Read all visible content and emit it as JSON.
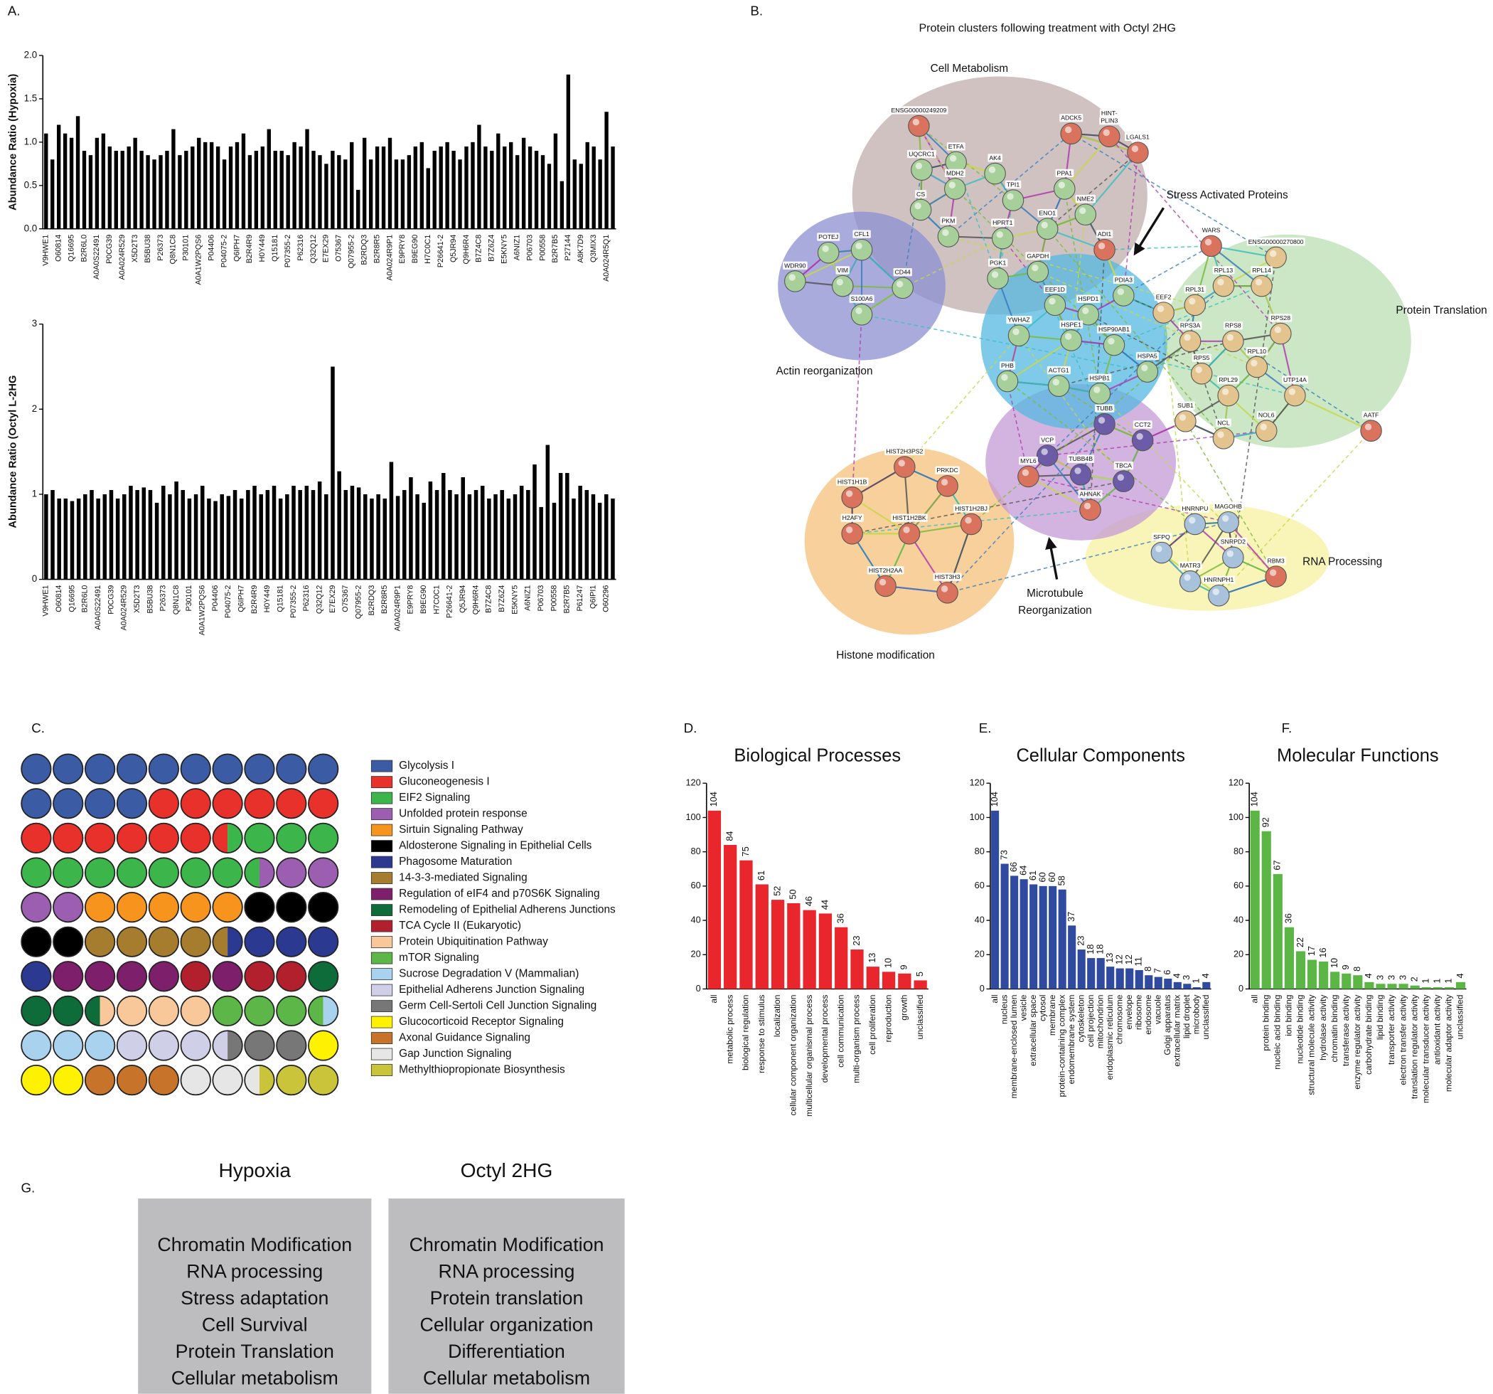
{
  "panel_labels": [
    "A.",
    "B.",
    "C.",
    "D.",
    "E.",
    "F.",
    "G."
  ],
  "chart_data": [
    {
      "type": "bar",
      "y_label": "Abundance Ratio (Hypoxia)",
      "color": "#000000",
      "categories": [
        "V9HWE1",
        null,
        "O60814",
        null,
        "Q16695",
        null,
        "B2R6L0",
        null,
        "A0A0S22491",
        null,
        "P0CG39",
        null,
        "A0A024R529",
        null,
        "X5D2T3",
        null,
        "B5BU38",
        null,
        "P26373",
        null,
        "Q8N1C8",
        null,
        "P30101",
        null,
        "A0A1W2PQS6",
        null,
        "P04406",
        null,
        "P04075-2",
        null,
        "Q6IPH7",
        null,
        "B2R4R9",
        null,
        "H0Y449",
        null,
        "Q15181",
        null,
        "P07355-2",
        null,
        "P62316",
        null,
        "Q32Q12",
        null,
        "E7EX29",
        null,
        "O75367",
        null,
        "Q07955-2",
        null,
        "B2RDQ3",
        null,
        "B2R8R5",
        null,
        "A0A024R9P1",
        null,
        "E9PRY8",
        null,
        "B9EG90",
        null,
        "H7C0C1",
        null,
        "P26641-2",
        null,
        "Q5JR94",
        null,
        "Q9H6R4",
        null,
        "B7Z4C8",
        null,
        "B7Z6Z4",
        null,
        "E5KNY5",
        null,
        "A6NIZ1",
        null,
        "P06703",
        null,
        "P00558",
        null,
        "B2R7B5",
        null,
        "P27144",
        null,
        "A8K7D9",
        null,
        "Q3MIX3",
        null,
        "A0A024R5Q1",
        null
      ],
      "values": [
        1.1,
        0.8,
        1.2,
        1.1,
        1.05,
        1.3,
        0.9,
        0.85,
        1.05,
        1.1,
        0.95,
        0.9,
        0.9,
        0.95,
        1.05,
        0.9,
        0.85,
        0.8,
        0.85,
        0.9,
        1.15,
        0.85,
        0.9,
        0.95,
        1.05,
        1.0,
        1.0,
        0.95,
        0.8,
        0.95,
        1.0,
        1.1,
        0.85,
        0.9,
        0.95,
        1.15,
        0.9,
        0.9,
        0.85,
        1.0,
        0.95,
        1.15,
        0.9,
        0.85,
        0.75,
        0.9,
        0.85,
        0.8,
        1.0,
        0.45,
        1.05,
        0.8,
        0.95,
        0.95,
        1.05,
        0.8,
        0.8,
        0.85,
        0.95,
        1.0,
        0.7,
        0.9,
        0.95,
        1.0,
        0.9,
        0.8,
        0.95,
        1.0,
        1.2,
        0.95,
        0.9,
        1.1,
        0.95,
        1.0,
        0.85,
        1.05,
        0.95,
        0.9,
        0.85,
        0.75,
        1.1,
        0.55,
        1.78,
        0.8,
        0.75,
        1.0,
        0.95,
        0.8,
        1.35,
        0.95
      ],
      "ylim": [
        0,
        2
      ],
      "yticks": [
        {
          "value": 0,
          "label": "0.0"
        },
        {
          "value": 0.5,
          "label": "0.5"
        },
        {
          "value": 1,
          "label": "1.0"
        },
        {
          "value": 1.5,
          "label": "1.5"
        },
        {
          "value": 2,
          "label": "2.0"
        }
      ]
    },
    {
      "type": "bar",
      "y_label": "Abundance Ratio (Octyl L-2HG",
      "color": "#000000",
      "categories": [
        "V9HWE1",
        null,
        "O60814",
        null,
        "Q16695",
        null,
        "B2R6L0",
        null,
        "A0A0S22491",
        null,
        "P0CG39",
        null,
        "A0A024R529",
        null,
        "X5D2T3",
        null,
        "B5BU38",
        null,
        "P26373",
        null,
        "Q8N1C8",
        null,
        "P30101",
        null,
        "A0A1W2PQS6",
        null,
        "P04406",
        null,
        "P04075-2",
        null,
        "Q6IPH7",
        null,
        "B2R4R9",
        null,
        "H0Y449",
        null,
        "Q15181",
        null,
        "P07355-2",
        null,
        "P62316",
        null,
        "Q32Q12",
        null,
        "E7EX29",
        null,
        "O75367",
        null,
        "Q07955-2",
        null,
        "B2RDQ3",
        null,
        "B2R8R5",
        null,
        "A0A024R9P1",
        null,
        "E9PRY8",
        null,
        "B9EG90",
        null,
        "H7C0C1",
        null,
        "P26641-2",
        null,
        "Q5JR94",
        null,
        "Q9H6R4",
        null,
        "B7Z4C8",
        null,
        "B7Z6Z4",
        null,
        "E5KNY5",
        null,
        "A6NIZ1",
        null,
        "P06703",
        null,
        "P00558",
        null,
        "B2R7B5",
        null,
        "P61247",
        null,
        "Q6IPI1",
        null,
        "O60296",
        null
      ],
      "values": [
        1.0,
        1.05,
        0.95,
        0.95,
        0.92,
        0.95,
        1.0,
        1.05,
        0.95,
        1.0,
        1.05,
        0.95,
        1.0,
        1.1,
        1.05,
        1.08,
        1.05,
        0.9,
        1.1,
        1.0,
        1.15,
        1.05,
        0.95,
        1.0,
        1.1,
        0.95,
        0.92,
        1.0,
        0.98,
        1.05,
        0.95,
        1.05,
        1.1,
        1.0,
        1.05,
        1.1,
        0.95,
        1.0,
        1.1,
        1.05,
        1.1,
        1.05,
        1.15,
        1.0,
        2.5,
        1.27,
        1.05,
        1.1,
        1.08,
        1.0,
        0.95,
        1.0,
        0.95,
        1.38,
        0.98,
        1.05,
        1.2,
        1.0,
        0.9,
        1.15,
        1.05,
        1.25,
        1.05,
        1.0,
        1.2,
        1.0,
        1.05,
        1.1,
        0.95,
        1.0,
        1.05,
        0.95,
        1.0,
        1.1,
        1.05,
        1.35,
        0.85,
        1.58,
        0.9,
        1.25,
        1.25,
        0.95,
        1.1,
        1.05,
        1.0,
        0.9,
        1.0,
        0.95
      ],
      "ylim": [
        0,
        3
      ],
      "yticks": [
        0,
        1,
        2,
        3
      ]
    },
    {
      "type": "bar",
      "title": "Biological Processes",
      "color": "#e8262b",
      "data_labels": true,
      "categories": [
        "all",
        "metabolic process",
        "biological regulation",
        "response to stimulus",
        "localization",
        "cellular component organization",
        "multicellular organismal process",
        "developmental process",
        "cell communication",
        "multi-organism process",
        "cell proliferation",
        "reproduction",
        "growth",
        "unclassified"
      ],
      "values": [
        104,
        84,
        75,
        61,
        52,
        50,
        46,
        44,
        36,
        23,
        13,
        10,
        9,
        5
      ],
      "ylim": [
        0,
        120
      ],
      "yticks": [
        0,
        20,
        40,
        60,
        80,
        100,
        120
      ]
    },
    {
      "type": "bar",
      "title": "Cellular Components",
      "color": "#2f4a9e",
      "data_labels": true,
      "categories": [
        "all",
        "nucleus",
        "membrane-enclosed lumen",
        "vesicle",
        "extracellular space",
        "cytosol",
        "membrane",
        "protein-containing complex",
        "endomembrane system",
        "cytoskeleton",
        "cell projection",
        "mitochondrion",
        "endoplasmic reticulum",
        "chromosome",
        "envelope",
        "ribosome",
        "endosome",
        "vacuole",
        "Golgi apparatus",
        "extracellular matrix",
        "lipid droplet",
        "microbody",
        "unclassified"
      ],
      "values": [
        104,
        73,
        66,
        64,
        61,
        60,
        60,
        58,
        37,
        23,
        18,
        18,
        13,
        12,
        12,
        11,
        8,
        7,
        6,
        4,
        3,
        1,
        4
      ],
      "ylim": [
        0,
        120
      ],
      "yticks": [
        0,
        20,
        40,
        60,
        80,
        100,
        120
      ]
    },
    {
      "type": "bar",
      "title": "Molecular Functions",
      "color": "#5bb646",
      "data_labels": true,
      "categories": [
        "all",
        "protein binding",
        "nucleic acid binding",
        "ion binding",
        "nucleotide binding",
        "structural molecule activity",
        "hydrolase activity",
        "chromatin binding",
        "transferase activity",
        "enzyme regulator activity",
        "carbohydrate binding",
        "lipid binding",
        "transporter activity",
        "electron transfer activity",
        "translation regulator activity",
        "molecular transducer activity",
        "antioxidant activity",
        "molecular adaptor activity",
        "unclassified"
      ],
      "values": [
        104,
        92,
        67,
        36,
        22,
        17,
        16,
        10,
        9,
        8,
        4,
        3,
        3,
        3,
        2,
        1,
        1,
        1,
        4
      ],
      "ylim": [
        0,
        120
      ],
      "yticks": [
        0,
        20,
        40,
        60,
        80,
        100,
        120
      ]
    }
  ],
  "network": {
    "title": "Protein clusters following treatment with Octyl 2HG",
    "clusters": [
      "Cell Metabolism",
      "Actin reorganization",
      "Protein Translation",
      "RNA Processing",
      "Histone modification"
    ],
    "stress_label": "Stress Activated Proteins",
    "microtubule_label": [
      "Microtubule",
      "Reorganization"
    ],
    "nodes": [
      "ENSG00000249209",
      "UQCRC1",
      "ETFA",
      "AK4",
      "MDH2",
      "TPI1",
      "PPA1",
      "ADCK5",
      [
        "HINT-",
        "PLIN3"
      ],
      "LGALS1",
      "NME2",
      "CS",
      "ENO1",
      "PKM",
      "HPRT1",
      "ADI1",
      "GAPDH",
      "PGK1",
      "POTEJ",
      "CFL1",
      "WDR90",
      "VIM",
      "CD44",
      "S100A6",
      "EEF1D",
      "HSPD1",
      "PDIA3",
      "EEF2",
      "YWHAZ",
      "HSPE1",
      "HSP90AB1",
      "HSPA5",
      "PHB",
      "ACTG1",
      "HSPB1",
      "TUBB",
      "CCT2",
      "VCP",
      "MYL6",
      "TUBB4B",
      "TBCA",
      "AHNAK",
      "PRKDC",
      "HIST2H3PS2",
      "HIST1H1B",
      "H2AFY",
      "HIST1H2BK",
      "HIST1H2BJ",
      "HIST2H2AA",
      "HIST3H3",
      "RPL13",
      "ENSG00000270800",
      "RPL31",
      "RPL14",
      "RPS3A",
      "RPS8",
      "RPS28",
      "RPS5",
      "RPL10",
      "RPL29",
      "UTP14A",
      "SUB1",
      "NOL6",
      "NCL",
      "AATF",
      "WARS",
      "HNRNPU",
      "MAGOHB",
      "SFPQ",
      "SNRPD2",
      "MATR3",
      "HNRNPH1",
      "RBM3"
    ]
  },
  "pathway_grid": {
    "legend": [
      {
        "label": "Glycolysis I",
        "color": "#3b5ba5"
      },
      {
        "label": "Gluconeogenesis I",
        "color": "#e8312a"
      },
      {
        "label": "EIF2 Signaling",
        "color": "#3cb54a"
      },
      {
        "label": "Unfolded protein response",
        "color": "#9c5eb0"
      },
      {
        "label": "Sirtuin Signaling Pathway",
        "color": "#f7941d",
        "label_color": "#e8312a"
      },
      {
        "label": "Aldosterone Signaling in Epithelial Cells",
        "color": "#000000"
      },
      {
        "label": "Phagosome Maturation",
        "color": "#2b3990"
      },
      {
        "label": "14-3-3-mediated Signaling",
        "color": "#a67c2e"
      },
      {
        "label": "Regulation of eIF4 and p70S6K Signaling",
        "color": "#7d1f6a"
      },
      {
        "label": "Remodeling of Epithelial Adherens Junctions",
        "color": "#0e6b3a"
      },
      {
        "label": "TCA Cycle II (Eukaryotic)",
        "color": "#b2202e"
      },
      {
        "label": "Protein Ubiquitination Pathway",
        "color": "#f8c89a"
      },
      {
        "label": "mTOR Signaling",
        "color": "#5cb648"
      },
      {
        "label": "Sucrose Degradation V (Mammalian)",
        "color": "#a9d2ef"
      },
      {
        "label": "Epithelial Adherens Junction Signaling",
        "color": "#d0cfe8"
      },
      {
        "label": "Germ Cell-Sertoli Cell Junction Signaling",
        "color": "#777777"
      },
      {
        "label": "Glucocorticoid Receptor Signaling",
        "color": "#fff200"
      },
      {
        "label": "Axonal Guidance Signaling",
        "color": "#c8732a"
      },
      {
        "label": "Gap Junction Signaling",
        "color": "#e6e6e6"
      },
      {
        "label": "Methylthiopropionate Biosynthesis",
        "color": "#c9c43a"
      }
    ],
    "rows": [
      [
        "#3b5ba5",
        "#3b5ba5",
        "#3b5ba5",
        "#3b5ba5",
        "#3b5ba5",
        "#3b5ba5",
        "#3b5ba5",
        "#3b5ba5",
        "#3b5ba5",
        "#3b5ba5"
      ],
      [
        "#3b5ba5",
        "#3b5ba5",
        "#3b5ba5",
        "#3b5ba5",
        "#e8312a",
        "#e8312a",
        "#e8312a",
        "#e8312a",
        "#e8312a",
        "#e8312a"
      ],
      [
        "#e8312a",
        "#e8312a",
        "#e8312a",
        "#e8312a",
        "#e8312a",
        "#e8312a",
        [
          "#e8312a",
          "#3cb54a"
        ],
        "#3cb54a",
        "#3cb54a",
        "#3cb54a"
      ],
      [
        "#3cb54a",
        "#3cb54a",
        "#3cb54a",
        "#3cb54a",
        "#3cb54a",
        "#3cb54a",
        "#3cb54a",
        [
          "#3cb54a",
          "#9c5eb0"
        ],
        "#9c5eb0",
        "#9c5eb0"
      ],
      [
        "#9c5eb0",
        "#9c5eb0",
        "#f7941d",
        "#f7941d",
        "#f7941d",
        "#f7941d",
        "#f7941d",
        "#000000",
        "#000000",
        "#000000"
      ],
      [
        "#000000",
        "#000000",
        "#a67c2e",
        "#a67c2e",
        "#a67c2e",
        "#a67c2e",
        [
          "#a67c2e",
          "#2b3990"
        ],
        "#2b3990",
        "#2b3990",
        "#2b3990"
      ],
      [
        "#2b3990",
        "#7d1f6a",
        "#7d1f6a",
        "#7d1f6a",
        "#7d1f6a",
        "#b2202e",
        "#7d1f6a",
        "#b2202e",
        "#b2202e",
        "#0e6b3a"
      ],
      [
        "#0e6b3a",
        "#0e6b3a",
        [
          "#0e6b3a",
          "#f8c89a"
        ],
        "#f8c89a",
        "#f8c89a",
        "#f8c89a",
        "#5cb648",
        "#5cb648",
        "#5cb648",
        [
          "#5cb648",
          "#a9d2ef"
        ]
      ],
      [
        "#a9d2ef",
        "#a9d2ef",
        "#a9d2ef",
        "#d0cfe8",
        "#d0cfe8",
        "#d0cfe8",
        [
          "#d0cfe8",
          "#777777"
        ],
        "#777777",
        "#777777",
        "#fff200"
      ],
      [
        "#fff200",
        "#fff200",
        "#c8732a",
        "#c8732a",
        "#c8732a",
        "#e6e6e6",
        "#e6e6e6",
        [
          "#e6e6e6",
          "#c9c43a"
        ],
        "#c9c43a",
        "#c9c43a"
      ]
    ]
  },
  "summary": {
    "columns": [
      {
        "title": "Hypoxia",
        "items": [
          "Chromatin Modification",
          "RNA processing",
          "Stress adaptation",
          "Cell Survival",
          "Protein Translation",
          "Cellular metabolism"
        ]
      },
      {
        "title": "Octyl 2HG",
        "items": [
          "Chromatin Modification",
          "RNA processing",
          "Protein translation",
          "Cellular organization",
          "Differentiation",
          "Cellular metabolism"
        ]
      }
    ]
  }
}
